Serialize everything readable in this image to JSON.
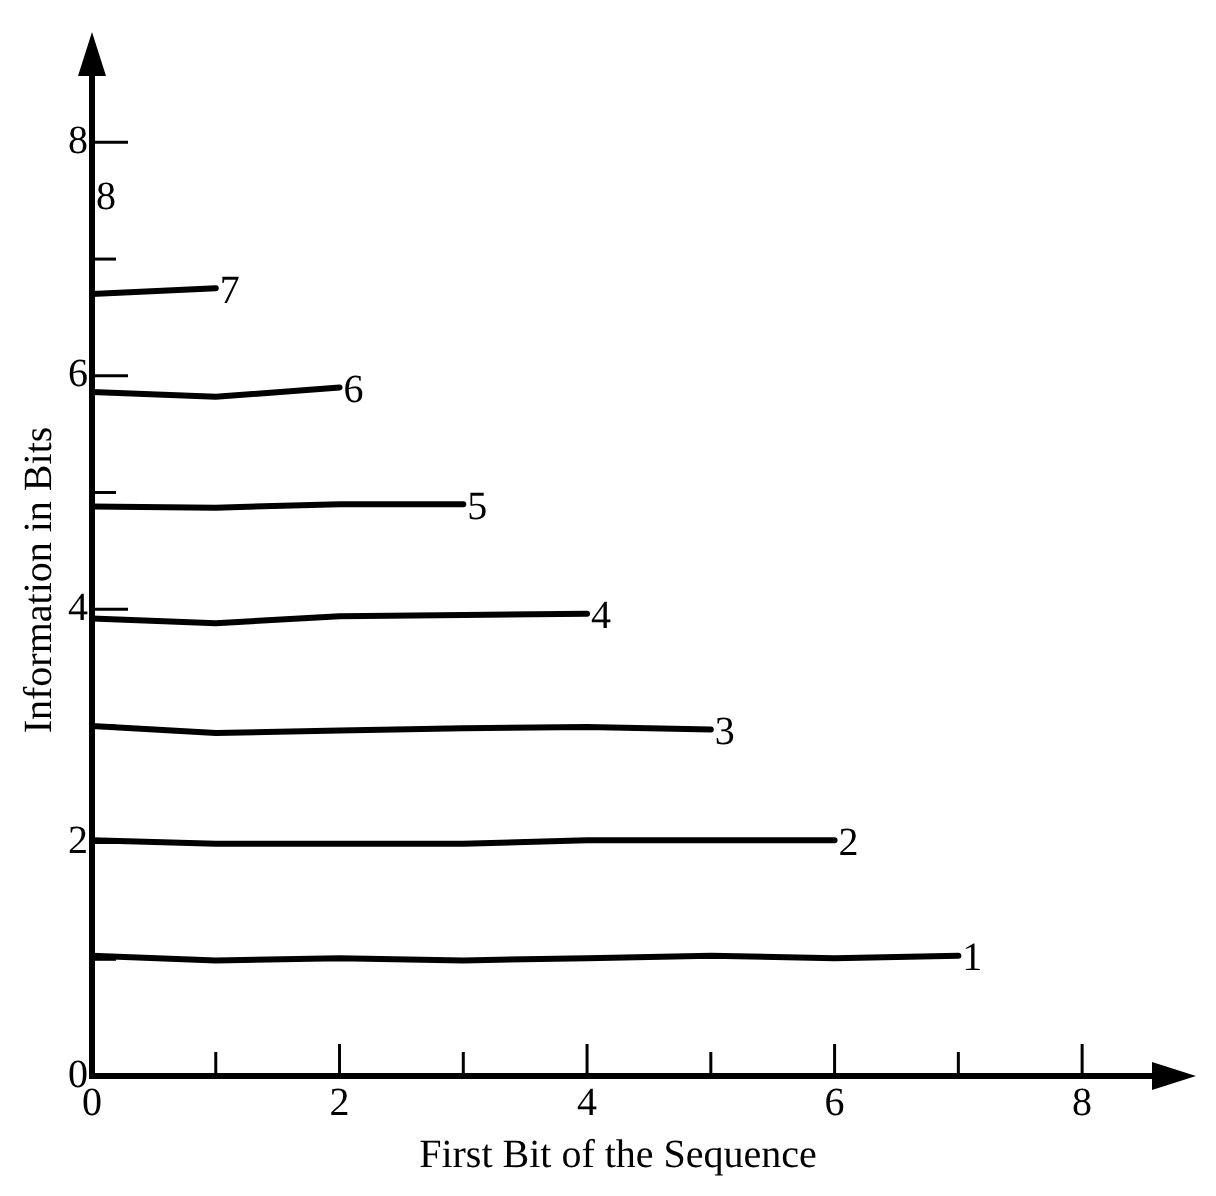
{
  "chart_data": {
    "type": "line",
    "xlabel": "First Bit of the Sequence",
    "ylabel": "Information in Bits",
    "xlim": [
      0,
      8.5
    ],
    "ylim": [
      0,
      8.5
    ],
    "xticks": [
      0,
      {
        "value": 1,
        "label": null
      },
      2,
      {
        "value": 3,
        "label": null
      },
      4,
      {
        "value": 5,
        "label": null
      },
      6,
      {
        "value": 7,
        "label": null
      },
      8
    ],
    "yticks": [
      0,
      {
        "value": 1,
        "label": null
      },
      2,
      {
        "value": 3,
        "label": null
      },
      4,
      {
        "value": 5,
        "label": null
      },
      6,
      {
        "value": 7,
        "label": null
      },
      8
    ],
    "grid": false,
    "legend": false,
    "marker": "none",
    "line_style": "solid",
    "series": [
      {
        "name": "1",
        "color": "#000000",
        "x": [
          0,
          1,
          2,
          3,
          4,
          5,
          6,
          7
        ],
        "values": [
          1.03,
          0.99,
          1.01,
          0.99,
          1.01,
          1.03,
          1.01,
          1.03
        ]
      },
      {
        "name": "2",
        "color": "#000000",
        "x": [
          0,
          1,
          2,
          3,
          4,
          5,
          6
        ],
        "values": [
          2.02,
          1.99,
          1.99,
          1.99,
          2.02,
          2.02,
          2.02
        ]
      },
      {
        "name": "3",
        "color": "#000000",
        "x": [
          0,
          1,
          2,
          3,
          4,
          5
        ],
        "values": [
          3.0,
          2.94,
          2.96,
          2.98,
          2.99,
          2.97
        ]
      },
      {
        "name": "4",
        "color": "#000000",
        "x": [
          0,
          1,
          2,
          3,
          4
        ],
        "values": [
          3.92,
          3.88,
          3.94,
          3.95,
          3.96
        ]
      },
      {
        "name": "5",
        "color": "#000000",
        "x": [
          0,
          1,
          2,
          3
        ],
        "values": [
          4.88,
          4.87,
          4.9,
          4.9
        ]
      },
      {
        "name": "6",
        "color": "#000000",
        "x": [
          0,
          1,
          2
        ],
        "values": [
          5.86,
          5.82,
          5.9
        ]
      },
      {
        "name": "7",
        "color": "#000000",
        "x": [
          0,
          1
        ],
        "values": [
          6.7,
          6.75
        ]
      }
    ],
    "annotations": [
      "8"
    ]
  }
}
